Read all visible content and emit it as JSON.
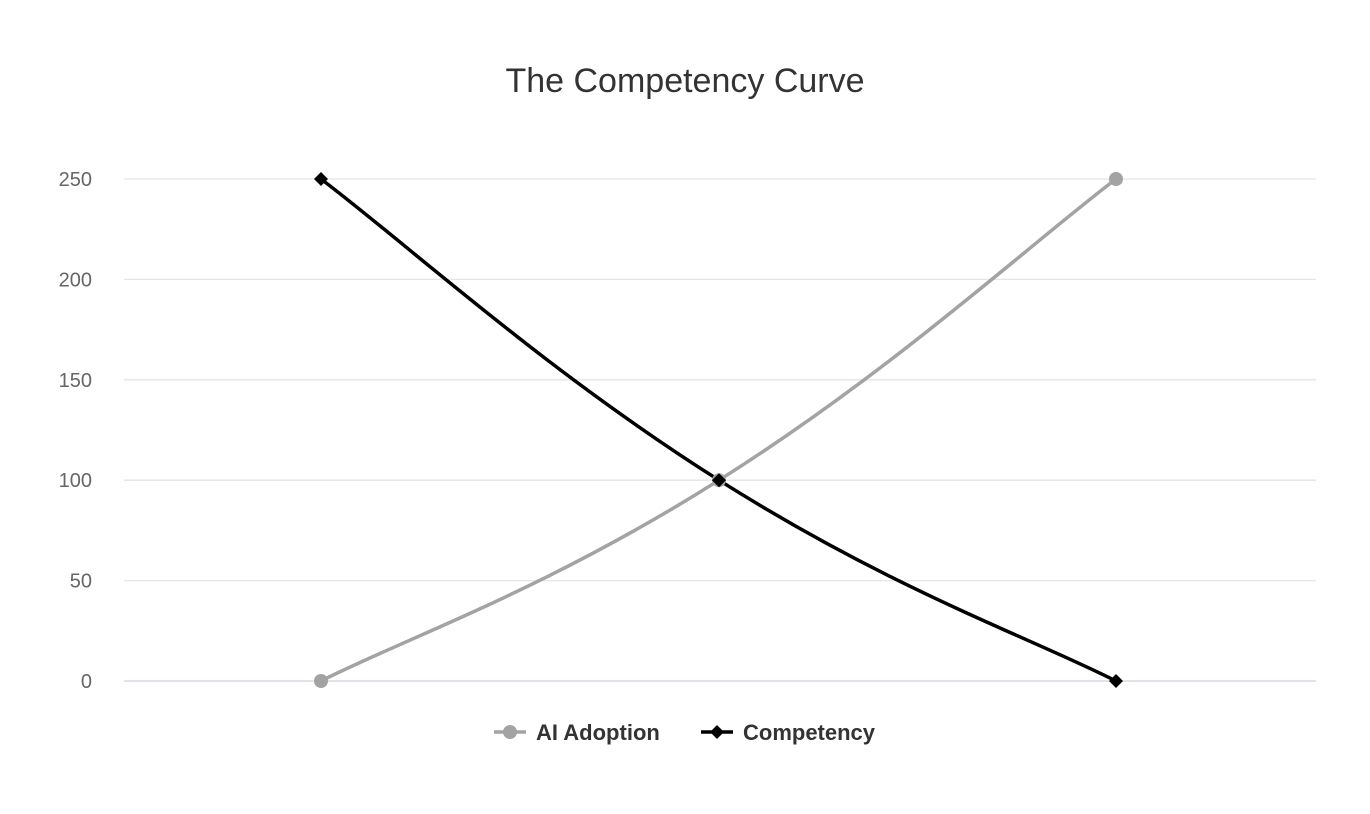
{
  "chart_data": {
    "type": "line",
    "title": "The Competency Curve",
    "xlabel": "",
    "ylabel": "",
    "x": [
      0,
      1,
      2
    ],
    "ylim": [
      0,
      250
    ],
    "yticks": [
      0,
      50,
      100,
      150,
      200,
      250
    ],
    "grid": true,
    "legend_position": "bottom",
    "smooth": true,
    "series": [
      {
        "name": "AI Adoption",
        "values": [
          0,
          100,
          250
        ],
        "color": "#a3a3a3",
        "marker": "circle"
      },
      {
        "name": "Competency",
        "values": [
          250,
          100,
          0
        ],
        "color": "#000000",
        "marker": "diamond"
      }
    ]
  }
}
